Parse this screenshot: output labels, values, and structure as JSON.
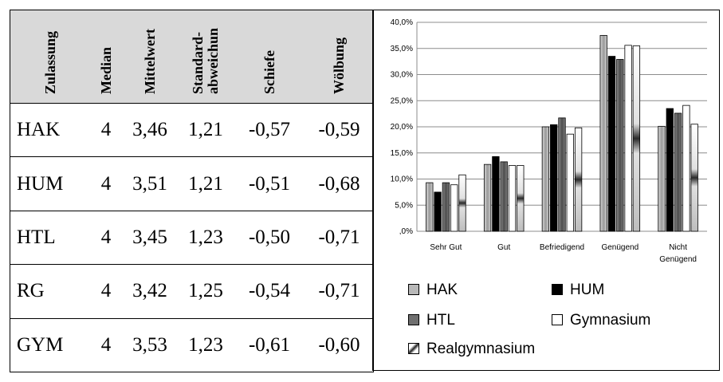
{
  "table": {
    "headers": [
      "Zulassung",
      "Median",
      "Mittelwert",
      "Standard-\nabweichun",
      "Schiefe",
      "Wölbung"
    ],
    "rows": [
      [
        "HAK",
        "4",
        "3,46",
        "1,21",
        "-0,57",
        "-0,59"
      ],
      [
        "HUM",
        "4",
        "3,51",
        "1,21",
        "-0,51",
        "-0,68"
      ],
      [
        "HTL",
        "4",
        "3,45",
        "1,23",
        "-0,50",
        "-0,71"
      ],
      [
        "RG",
        "4",
        "3,42",
        "1,25",
        "-0,54",
        "-0,71"
      ],
      [
        "GYM",
        "4",
        "3,53",
        "1,23",
        "-0,61",
        "-0,60"
      ]
    ]
  },
  "chart_data": {
    "type": "bar",
    "categories": [
      "Sehr Gut",
      "Gut",
      "Befriedigend",
      "Genügend",
      "Nicht\nGenügend"
    ],
    "ytick_labels": [
      "40,0%",
      "35,0%",
      "30,0%",
      "25,0%",
      "20,0%",
      "15,0%",
      "10,0%",
      "5,0%",
      ",0%"
    ],
    "ylim": [
      0,
      40
    ],
    "grid": true,
    "legend_position": "bottom",
    "series": [
      {
        "name": "HAK",
        "values": [
          9.3,
          12.8,
          20.0,
          37.5,
          20.1
        ],
        "color": "#b8b8b8"
      },
      {
        "name": "HUM",
        "values": [
          7.5,
          14.3,
          20.4,
          33.5,
          23.5
        ],
        "color": "#000000"
      },
      {
        "name": "HTL",
        "values": [
          9.3,
          13.3,
          21.7,
          32.9,
          22.6
        ],
        "color": "#6f6f6f"
      },
      {
        "name": "Gymnasium",
        "values": [
          8.9,
          12.6,
          18.6,
          35.6,
          24.1
        ],
        "color": "#ffffff"
      },
      {
        "name": "Realgymnasium",
        "values": [
          10.8,
          12.6,
          19.8,
          35.5,
          20.5
        ],
        "color": "pattern"
      }
    ]
  }
}
